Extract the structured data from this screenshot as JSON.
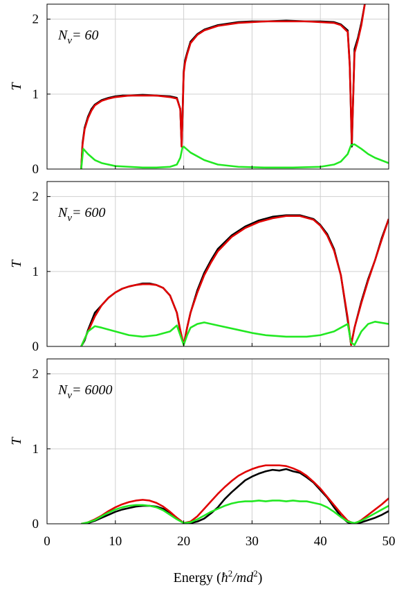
{
  "chart_data": [
    {
      "type": "line",
      "panel_label": "N",
      "panel_label_sub": "v",
      "panel_label_value": "= 60",
      "ylabel": "T",
      "xlim": [
        0,
        50
      ],
      "ylim": [
        0,
        2.2
      ],
      "yticks": [
        "0",
        "1",
        "2"
      ],
      "grid": true,
      "series": [
        {
          "color": "#000000",
          "x": [
            5,
            5.2,
            5.5,
            6,
            6.5,
            7,
            8,
            9,
            10,
            11,
            12,
            14,
            16,
            18,
            19,
            19.5,
            19.7,
            20,
            20.2,
            20.5,
            21,
            22,
            23,
            25,
            28,
            30,
            32,
            35,
            38,
            40,
            42,
            43,
            44,
            44.3,
            44.6,
            45,
            45.5,
            46,
            46.5
          ],
          "values": [
            0,
            0.35,
            0.55,
            0.7,
            0.8,
            0.86,
            0.92,
            0.95,
            0.97,
            0.98,
            0.98,
            0.99,
            0.98,
            0.97,
            0.95,
            0.8,
            0.3,
            1.3,
            1.45,
            1.55,
            1.7,
            1.8,
            1.86,
            1.92,
            1.96,
            1.97,
            1.97,
            1.98,
            1.97,
            1.97,
            1.96,
            1.93,
            1.85,
            1.4,
            0.3,
            1.6,
            1.75,
            1.95,
            2.2
          ]
        },
        {
          "color": "#e00000",
          "x": [
            5,
            5.2,
            5.5,
            6,
            6.5,
            7,
            8,
            9,
            10,
            11,
            12,
            14,
            16,
            18,
            19,
            19.5,
            19.7,
            20,
            20.2,
            20.5,
            21,
            22,
            23,
            25,
            28,
            30,
            32,
            35,
            38,
            40,
            42,
            43,
            44,
            44.3,
            44.6,
            45,
            45.5,
            46,
            46.5
          ],
          "values": [
            0,
            0.33,
            0.53,
            0.68,
            0.78,
            0.85,
            0.91,
            0.94,
            0.96,
            0.97,
            0.98,
            0.98,
            0.98,
            0.96,
            0.94,
            0.8,
            0.3,
            1.28,
            1.42,
            1.53,
            1.68,
            1.79,
            1.85,
            1.91,
            1.95,
            1.96,
            1.97,
            1.97,
            1.97,
            1.96,
            1.95,
            1.92,
            1.83,
            1.38,
            0.35,
            1.55,
            1.72,
            1.92,
            2.2
          ]
        },
        {
          "color": "#22e822",
          "x": [
            5,
            5.3,
            6,
            7,
            8,
            10,
            12,
            14,
            16,
            18,
            19,
            19.5,
            19.8,
            20,
            21,
            23,
            25,
            28,
            32,
            36,
            40,
            42,
            43,
            44,
            44.5,
            45,
            46,
            47,
            48,
            50
          ],
          "values": [
            0,
            0.27,
            0.2,
            0.12,
            0.08,
            0.04,
            0.03,
            0.02,
            0.02,
            0.03,
            0.06,
            0.15,
            0.28,
            0.3,
            0.22,
            0.12,
            0.06,
            0.03,
            0.02,
            0.02,
            0.03,
            0.06,
            0.1,
            0.2,
            0.32,
            0.33,
            0.27,
            0.2,
            0.15,
            0.08
          ]
        }
      ]
    },
    {
      "type": "line",
      "panel_label": "N",
      "panel_label_sub": "v",
      "panel_label_value": "= 600",
      "ylabel": "T",
      "xlim": [
        0,
        50
      ],
      "ylim": [
        0,
        2.2
      ],
      "yticks": [
        "0",
        "1",
        "2"
      ],
      "grid": true,
      "series": [
        {
          "color": "#000000",
          "x": [
            5,
            5.5,
            6,
            7,
            8,
            9,
            10,
            11,
            12,
            13,
            14,
            15,
            16,
            17,
            18,
            19,
            19.5,
            20,
            20.5,
            21,
            22,
            23,
            24,
            25,
            27,
            29,
            31,
            33,
            35,
            37,
            39,
            40,
            41,
            42,
            43,
            44,
            44.5,
            45,
            46,
            47,
            48,
            49,
            50
          ],
          "values": [
            0,
            0.08,
            0.22,
            0.45,
            0.55,
            0.65,
            0.72,
            0.77,
            0.8,
            0.82,
            0.84,
            0.84,
            0.82,
            0.78,
            0.68,
            0.45,
            0.2,
            0.02,
            0.25,
            0.45,
            0.75,
            0.98,
            1.15,
            1.3,
            1.48,
            1.6,
            1.68,
            1.73,
            1.75,
            1.75,
            1.7,
            1.62,
            1.5,
            1.3,
            0.95,
            0.35,
            0.02,
            0.25,
            0.6,
            0.9,
            1.15,
            1.45,
            1.7
          ]
        },
        {
          "color": "#e00000",
          "x": [
            5,
            5.5,
            6,
            7,
            8,
            9,
            10,
            11,
            12,
            13,
            14,
            15,
            16,
            17,
            18,
            19,
            19.5,
            20,
            20.5,
            21,
            22,
            23,
            24,
            25,
            27,
            29,
            31,
            33,
            35,
            37,
            39,
            40,
            41,
            42,
            43,
            44,
            44.5,
            45,
            46,
            47,
            48,
            49,
            50
          ],
          "values": [
            0,
            0.1,
            0.2,
            0.4,
            0.55,
            0.65,
            0.72,
            0.77,
            0.8,
            0.82,
            0.83,
            0.83,
            0.82,
            0.78,
            0.68,
            0.45,
            0.22,
            0.02,
            0.25,
            0.45,
            0.72,
            0.95,
            1.12,
            1.27,
            1.46,
            1.58,
            1.66,
            1.71,
            1.74,
            1.74,
            1.69,
            1.61,
            1.48,
            1.28,
            0.95,
            0.38,
            0.02,
            0.25,
            0.58,
            0.88,
            1.15,
            1.43,
            1.7
          ]
        },
        {
          "color": "#22e822",
          "x": [
            5,
            5.5,
            6,
            7,
            8,
            10,
            12,
            14,
            16,
            18,
            19,
            19.5,
            20,
            20.5,
            21,
            22,
            23,
            25,
            28,
            30,
            32,
            35,
            38,
            40,
            42,
            43,
            44,
            44.5,
            45,
            46,
            47,
            48,
            50
          ],
          "values": [
            0,
            0.1,
            0.2,
            0.27,
            0.25,
            0.2,
            0.15,
            0.13,
            0.15,
            0.2,
            0.28,
            0.15,
            0.02,
            0.15,
            0.25,
            0.3,
            0.32,
            0.28,
            0.22,
            0.18,
            0.15,
            0.13,
            0.13,
            0.15,
            0.2,
            0.25,
            0.3,
            0.05,
            0.02,
            0.2,
            0.3,
            0.33,
            0.3
          ]
        }
      ]
    },
    {
      "type": "line",
      "panel_label": "N",
      "panel_label_sub": "v",
      "panel_label_value": "= 6000",
      "ylabel": "T",
      "xlim": [
        0,
        50
      ],
      "ylim": [
        0,
        2.2
      ],
      "yticks": [
        "0",
        "1",
        "2"
      ],
      "xticks": [
        "0",
        "10",
        "20",
        "30",
        "40",
        "50"
      ],
      "grid": true,
      "series": [
        {
          "color": "#000000",
          "x": [
            5,
            6,
            7,
            8,
            9,
            10,
            11,
            12,
            13,
            14,
            15,
            16,
            17,
            18,
            19,
            20,
            21,
            22,
            23,
            24,
            25,
            26,
            27,
            28,
            29,
            30,
            31,
            32,
            33,
            34,
            35,
            36,
            37,
            38,
            39,
            40,
            41,
            42,
            43,
            44,
            45,
            46,
            47,
            48,
            49,
            50
          ],
          "values": [
            0,
            0.01,
            0.04,
            0.08,
            0.12,
            0.16,
            0.19,
            0.21,
            0.23,
            0.24,
            0.24,
            0.23,
            0.2,
            0.15,
            0.08,
            0.01,
            0.01,
            0.03,
            0.07,
            0.14,
            0.22,
            0.33,
            0.42,
            0.5,
            0.58,
            0.63,
            0.67,
            0.7,
            0.72,
            0.71,
            0.73,
            0.7,
            0.68,
            0.62,
            0.55,
            0.45,
            0.35,
            0.22,
            0.1,
            0.02,
            0.0,
            0.02,
            0.05,
            0.08,
            0.12,
            0.17
          ]
        },
        {
          "color": "#e00000",
          "x": [
            5,
            6,
            7,
            8,
            9,
            10,
            11,
            12,
            13,
            14,
            15,
            16,
            17,
            18,
            19,
            20,
            21,
            22,
            23,
            24,
            25,
            26,
            27,
            28,
            29,
            30,
            31,
            32,
            33,
            34,
            35,
            36,
            37,
            38,
            39,
            40,
            41,
            42,
            43,
            44,
            45,
            46,
            47,
            48,
            49,
            50
          ],
          "values": [
            0,
            0.02,
            0.06,
            0.11,
            0.17,
            0.22,
            0.26,
            0.29,
            0.31,
            0.32,
            0.31,
            0.28,
            0.23,
            0.16,
            0.08,
            0.01,
            0.03,
            0.1,
            0.2,
            0.3,
            0.4,
            0.49,
            0.57,
            0.64,
            0.69,
            0.73,
            0.76,
            0.78,
            0.78,
            0.78,
            0.77,
            0.74,
            0.7,
            0.64,
            0.56,
            0.47,
            0.36,
            0.25,
            0.14,
            0.04,
            0.0,
            0.05,
            0.12,
            0.19,
            0.26,
            0.34
          ]
        },
        {
          "color": "#22e822",
          "x": [
            5,
            6,
            7,
            8,
            9,
            10,
            11,
            12,
            13,
            14,
            15,
            16,
            17,
            18,
            19,
            20,
            21,
            22,
            23,
            24,
            25,
            26,
            27,
            28,
            29,
            30,
            31,
            32,
            33,
            34,
            35,
            36,
            37,
            38,
            39,
            40,
            41,
            42,
            43,
            44,
            45,
            46,
            47,
            48,
            49,
            50
          ],
          "values": [
            0,
            0.02,
            0.05,
            0.1,
            0.15,
            0.19,
            0.22,
            0.24,
            0.25,
            0.25,
            0.24,
            0.22,
            0.18,
            0.12,
            0.06,
            0.01,
            0.02,
            0.06,
            0.11,
            0.16,
            0.2,
            0.24,
            0.27,
            0.29,
            0.3,
            0.3,
            0.31,
            0.3,
            0.31,
            0.31,
            0.3,
            0.31,
            0.3,
            0.3,
            0.28,
            0.26,
            0.22,
            0.16,
            0.09,
            0.03,
            0.01,
            0.04,
            0.09,
            0.14,
            0.19,
            0.24
          ]
        }
      ]
    }
  ],
  "xlabel_text": "Energy",
  "xlabel_unit_num": "ħ",
  "xlabel_unit_num_exp": "2",
  "xlabel_unit_den": "/md",
  "xlabel_unit_den_exp": "2"
}
